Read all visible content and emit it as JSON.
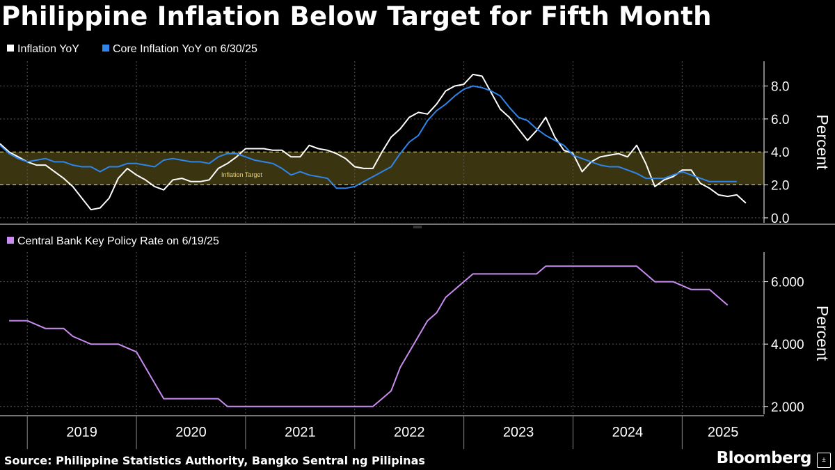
{
  "title": "Philippine Inflation Below Target for Fifth Month",
  "source": "Source: Philippine Statistics Authority, Bangko Sentral ng Pilipinas",
  "brand": "Bloomberg",
  "brand_icon": "plus-minus-icon",
  "colors": {
    "background": "#000000",
    "inflation": "#ffffff",
    "core": "#2f86ea",
    "policy": "#c98cf0",
    "target_band": "#3a3410",
    "target_line": "#f0e7a0",
    "target_label": "#e8d070",
    "grid": "#5a5a5a"
  },
  "chart_data": [
    {
      "type": "line",
      "legend": [
        "Inflation YoY",
        "Core Inflation YoY on 6/30/25"
      ],
      "ylabel": "Percent",
      "ylim": [
        -0.3,
        9.5
      ],
      "yticks": [
        "0.0",
        "2.0",
        "4.0",
        "6.0",
        "8.0"
      ],
      "ytick_values": [
        0,
        2,
        4,
        6,
        8
      ],
      "grid": true,
      "legend_position": "top-left",
      "target_band": {
        "label": "Inflation Target",
        "low": 2,
        "high": 4
      },
      "x_start": "2018-10",
      "series": [
        {
          "name": "Inflation YoY",
          "values": [
            4.5,
            4.0,
            3.7,
            3.4,
            3.2,
            3.2,
            2.8,
            2.4,
            1.9,
            1.2,
            0.5,
            0.6,
            1.2,
            2.4,
            3.0,
            2.6,
            2.3,
            1.9,
            1.7,
            2.3,
            2.4,
            2.2,
            2.2,
            2.3,
            3.0,
            3.3,
            3.7,
            4.2,
            4.2,
            4.2,
            4.1,
            4.1,
            3.7,
            3.7,
            4.4,
            4.2,
            4.1,
            3.9,
            3.6,
            3.1,
            3.0,
            3.0,
            4.0,
            4.9,
            5.4,
            6.1,
            6.4,
            6.3,
            6.9,
            7.7,
            8.0,
            8.1,
            8.7,
            8.6,
            7.6,
            6.6,
            6.1,
            5.4,
            4.7,
            5.3,
            6.1,
            4.9,
            4.1,
            3.9,
            2.8,
            3.4,
            3.7,
            3.8,
            3.9,
            3.7,
            4.4,
            3.3,
            1.9,
            2.3,
            2.5,
            2.9,
            2.9,
            2.1,
            1.8,
            1.4,
            1.3,
            1.4,
            0.9
          ]
        },
        {
          "name": "Core Inflation YoY on 6/30/25",
          "values": [
            4.4,
            3.9,
            3.6,
            3.4,
            3.5,
            3.6,
            3.4,
            3.4,
            3.2,
            3.1,
            3.1,
            2.8,
            3.1,
            3.1,
            3.3,
            3.3,
            3.2,
            3.1,
            3.5,
            3.6,
            3.5,
            3.4,
            3.4,
            3.3,
            3.7,
            3.9,
            3.9,
            3.7,
            3.5,
            3.4,
            3.3,
            3.0,
            2.6,
            2.8,
            2.6,
            2.5,
            2.4,
            1.8,
            1.8,
            1.9,
            2.2,
            2.5,
            2.8,
            3.1,
            3.9,
            4.6,
            5.0,
            5.9,
            6.5,
            6.9,
            7.4,
            7.8,
            8.0,
            7.9,
            7.7,
            7.4,
            6.7,
            6.1,
            5.9,
            5.4,
            5.0,
            4.7,
            4.4,
            3.8,
            3.6,
            3.4,
            3.2,
            3.1,
            3.1,
            2.9,
            2.7,
            2.4,
            2.4,
            2.4,
            2.6,
            2.8,
            2.6,
            2.4,
            2.2,
            2.2,
            2.2,
            2.2
          ]
        }
      ]
    },
    {
      "type": "line",
      "legend": [
        "Central Bank Key Policy Rate on 6/19/25"
      ],
      "ylabel": "Percent",
      "ylim": [
        1.75,
        6.95
      ],
      "yticks": [
        "2.000",
        "4.000",
        "6.000"
      ],
      "ytick_values": [
        2,
        4,
        6
      ],
      "grid": true,
      "legend_position": "top-left",
      "x": [
        "2018-11",
        "2019-01",
        "2019-03",
        "2019-05",
        "2019-06",
        "2019-08",
        "2019-09",
        "2019-11",
        "2020-01",
        "2020-02",
        "2020-03",
        "2020-04",
        "2020-06",
        "2020-10",
        "2020-11",
        "2021-06",
        "2021-12",
        "2022-03",
        "2022-04",
        "2022-05",
        "2022-06",
        "2022-07",
        "2022-08",
        "2022-09",
        "2022-10",
        "2022-11",
        "2022-12",
        "2023-02",
        "2023-03",
        "2023-09",
        "2023-10",
        "2024-05",
        "2024-08",
        "2024-09",
        "2024-10",
        "2024-12",
        "2025-02",
        "2025-04",
        "2025-06"
      ],
      "series": [
        {
          "name": "Central Bank Key Policy Rate on 6/19/25",
          "values": [
            4.75,
            4.75,
            4.5,
            4.5,
            4.25,
            4.0,
            4.0,
            4.0,
            3.75,
            3.25,
            2.75,
            2.25,
            2.25,
            2.25,
            2.0,
            2.0,
            2.0,
            2.0,
            2.25,
            2.5,
            3.25,
            3.75,
            4.25,
            4.75,
            5.0,
            5.5,
            5.75,
            6.25,
            6.25,
            6.25,
            6.5,
            6.5,
            6.5,
            6.25,
            6.0,
            6.0,
            5.75,
            5.75,
            5.25
          ]
        }
      ]
    }
  ],
  "x_axis": {
    "start": "2018-10",
    "end": "2025-10",
    "boundaries": [
      "2019-01",
      "2020-01",
      "2021-01",
      "2022-01",
      "2023-01",
      "2024-01",
      "2025-01"
    ],
    "labels": [
      "2019",
      "2020",
      "2021",
      "2022",
      "2023",
      "2024",
      "2025"
    ]
  }
}
